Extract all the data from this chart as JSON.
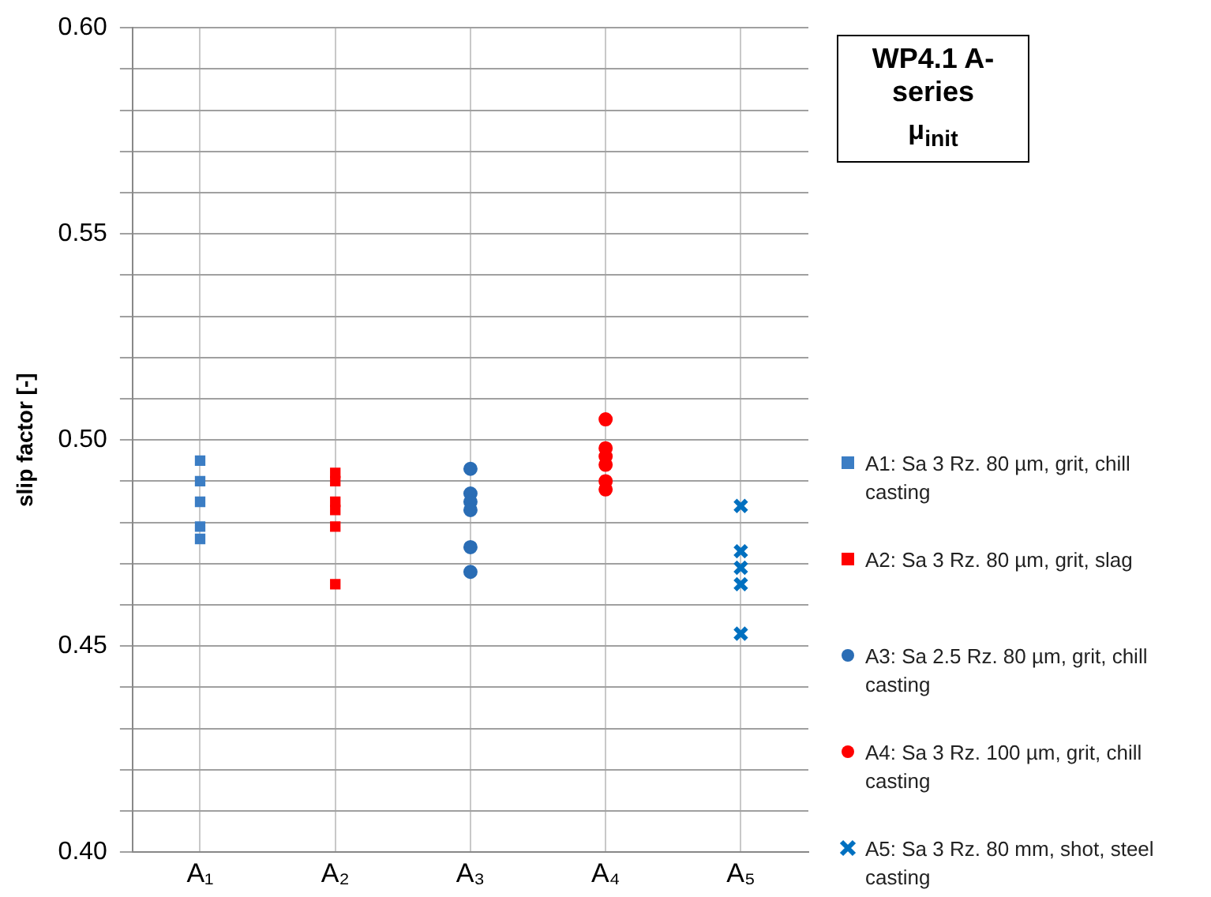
{
  "chart_data": {
    "type": "scatter",
    "title": "WP4.1 A-series",
    "subtitle": "μ$_{init}$",
    "ylabel": "slip factor [-]",
    "categories": [
      "A₁",
      "A₂",
      "A₃",
      "A₄",
      "A₅"
    ],
    "ylim": [
      0.4,
      0.6
    ],
    "yticks": [
      {
        "value": 0.4,
        "label": "0.40"
      },
      {
        "value": 0.41,
        "label": null
      },
      {
        "value": 0.42,
        "label": null
      },
      {
        "value": 0.43,
        "label": null
      },
      {
        "value": 0.44,
        "label": null
      },
      {
        "value": 0.45,
        "label": "0.45"
      },
      {
        "value": 0.46,
        "label": null
      },
      {
        "value": 0.47,
        "label": null
      },
      {
        "value": 0.48,
        "label": null
      },
      {
        "value": 0.49,
        "label": null
      },
      {
        "value": 0.5,
        "label": "0.50"
      },
      {
        "value": 0.51,
        "label": null
      },
      {
        "value": 0.52,
        "label": null
      },
      {
        "value": 0.53,
        "label": null
      },
      {
        "value": 0.54,
        "label": null
      },
      {
        "value": 0.55,
        "label": "0.55"
      },
      {
        "value": 0.56,
        "label": null
      },
      {
        "value": 0.57,
        "label": null
      },
      {
        "value": 0.58,
        "label": null
      },
      {
        "value": 0.59,
        "label": null
      },
      {
        "value": 0.6,
        "label": "0.60"
      }
    ],
    "grid": true,
    "legend": "right",
    "series": [
      {
        "name": "A1: Sa 3 Rz. 80 µm, grit, chill casting",
        "color": "#3b7dc4",
        "marker": "square",
        "x": [
          "A₁",
          "A₁",
          "A₁",
          "A₁",
          "A₁"
        ],
        "values": [
          0.495,
          0.49,
          0.485,
          0.479,
          0.476
        ]
      },
      {
        "name": "A2: Sa 3 Rz. 80 µm, grit, slag",
        "color": "#ff0000",
        "marker": "square",
        "x": [
          "A₂",
          "A₂",
          "A₂",
          "A₂",
          "A₂",
          "A₂"
        ],
        "values": [
          0.492,
          0.49,
          0.485,
          0.483,
          0.479,
          0.465
        ]
      },
      {
        "name": "A3: Sa 2.5 Rz. 80 µm, grit, chill casting",
        "color": "#2a6db5",
        "marker": "circle",
        "x": [
          "A₃",
          "A₃",
          "A₃",
          "A₃",
          "A₃",
          "A₃"
        ],
        "values": [
          0.493,
          0.487,
          0.485,
          0.483,
          0.474,
          0.468
        ]
      },
      {
        "name": "A4: Sa 3 Rz. 100 µm, grit, chill casting",
        "color": "#ff0000",
        "marker": "circle",
        "x": [
          "A₄",
          "A₄",
          "A₄",
          "A₄",
          "A₄",
          "A₄"
        ],
        "values": [
          0.505,
          0.498,
          0.496,
          0.494,
          0.49,
          0.488
        ]
      },
      {
        "name": "A5: Sa 3 Rz. 80 mm, shot, steel casting",
        "color": "#0070c0",
        "marker": "cross",
        "x": [
          "A₅",
          "A₅",
          "A₅",
          "A₅",
          "A₅"
        ],
        "values": [
          0.484,
          0.473,
          0.469,
          0.465,
          0.453
        ]
      }
    ]
  }
}
